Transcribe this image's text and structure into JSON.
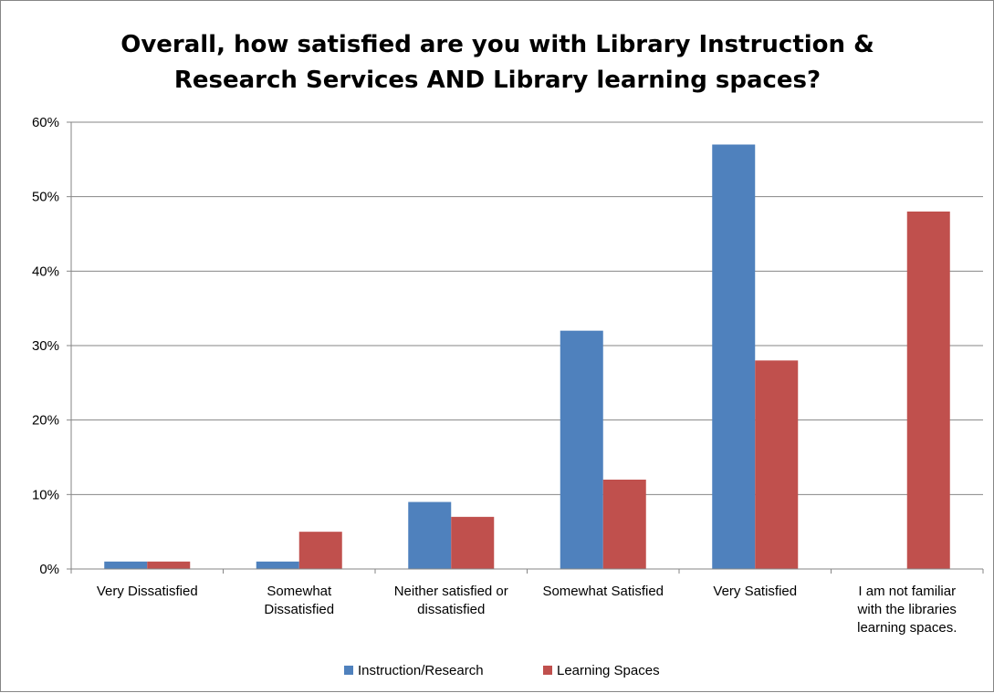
{
  "chart_data": {
    "type": "bar",
    "title_lines": [
      "Overall, how satisfied are you with Library Instruction &",
      "Research Services AND Library learning spaces?"
    ],
    "categories": [
      [
        "Very Dissatisfied"
      ],
      [
        "Somewhat",
        "Dissatisfied"
      ],
      [
        "Neither satisfied or",
        "dissatisfied"
      ],
      [
        "Somewhat Satisfied"
      ],
      [
        "Very Satisfied"
      ],
      [
        "I am not familiar",
        "with the libraries",
        "learning spaces."
      ]
    ],
    "series": [
      {
        "name": "Instruction/Research",
        "color": "#4F81BD",
        "values": [
          1,
          1,
          9,
          32,
          57,
          null
        ]
      },
      {
        "name": "Learning Spaces",
        "color": "#C0504D",
        "values": [
          1,
          5,
          7,
          12,
          28,
          48
        ]
      }
    ],
    "ylim": [
      0,
      60
    ],
    "yticks": [
      "0%",
      "10%",
      "20%",
      "30%",
      "40%",
      "50%",
      "60%"
    ],
    "ytick_values": [
      0,
      10,
      20,
      30,
      40,
      50,
      60
    ],
    "grid": true,
    "legend_position": "bottom"
  }
}
